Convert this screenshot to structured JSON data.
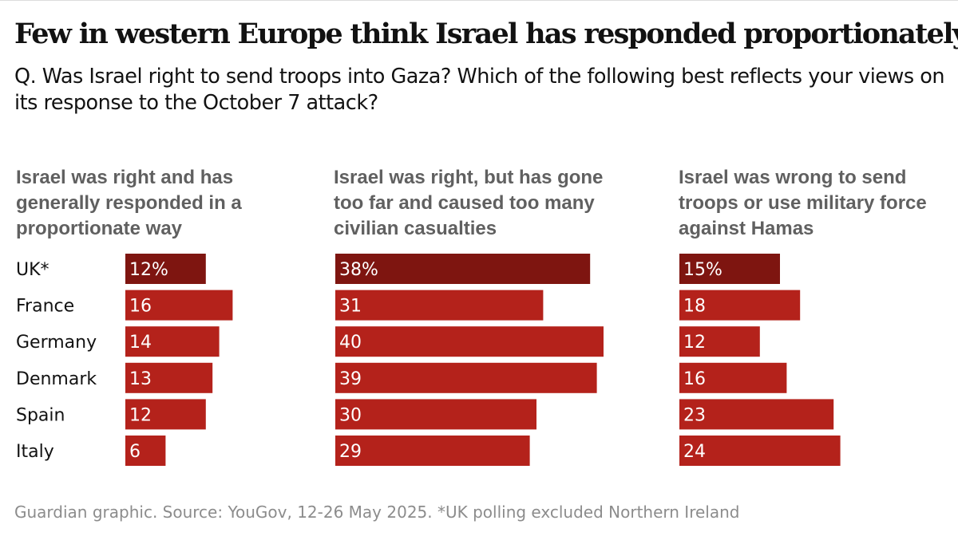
{
  "title": "Few in western Europe think Israel has responded proportionately",
  "subtitle": "Q. Was Israel right to send troops into Gaza? Which of the following best reflects your views on its response to the October 7 attack?",
  "footer": "Guardian graphic. Source: YouGov, 12-26 May 2025. *UK polling excluded Northern Ireland",
  "colors": {
    "bar": "#b4221b",
    "bar_highlight": "#7e1510",
    "heading": "#606060",
    "footer": "#8c8c8c"
  },
  "chart_data": {
    "type": "bar",
    "orientation": "horizontal",
    "categories": [
      "UK*",
      "France",
      "Germany",
      "Denmark",
      "Spain",
      "Italy"
    ],
    "highlight_category": "UK*",
    "series": [
      {
        "name": "Israel was right and has generally responded in a proportionate way",
        "heading_lines": [
          "Israel was right and has",
          "generally responded in a",
          "proportionate way"
        ],
        "values": [
          12,
          16,
          14,
          13,
          12,
          6
        ],
        "labels": [
          "12%",
          "16",
          "14",
          "13",
          "12",
          "6"
        ]
      },
      {
        "name": "Israel was right, but has gone too far and caused too many civilian casualties",
        "heading_lines": [
          "Israel was right, but has gone",
          "too far and caused too many",
          "civilian casualties"
        ],
        "values": [
          38,
          31,
          40,
          39,
          30,
          29
        ],
        "labels": [
          "38%",
          "31",
          "40",
          "39",
          "30",
          "29"
        ]
      },
      {
        "name": "Israel was wrong to send troops or use military force against Hamas",
        "heading_lines": [
          "Israel was wrong to send",
          "troops or use military force",
          "against Hamas"
        ],
        "values": [
          15,
          18,
          12,
          16,
          23,
          24
        ],
        "labels": [
          "15%",
          "18",
          "12",
          "16",
          "23",
          "24"
        ]
      }
    ],
    "unit": "%"
  }
}
